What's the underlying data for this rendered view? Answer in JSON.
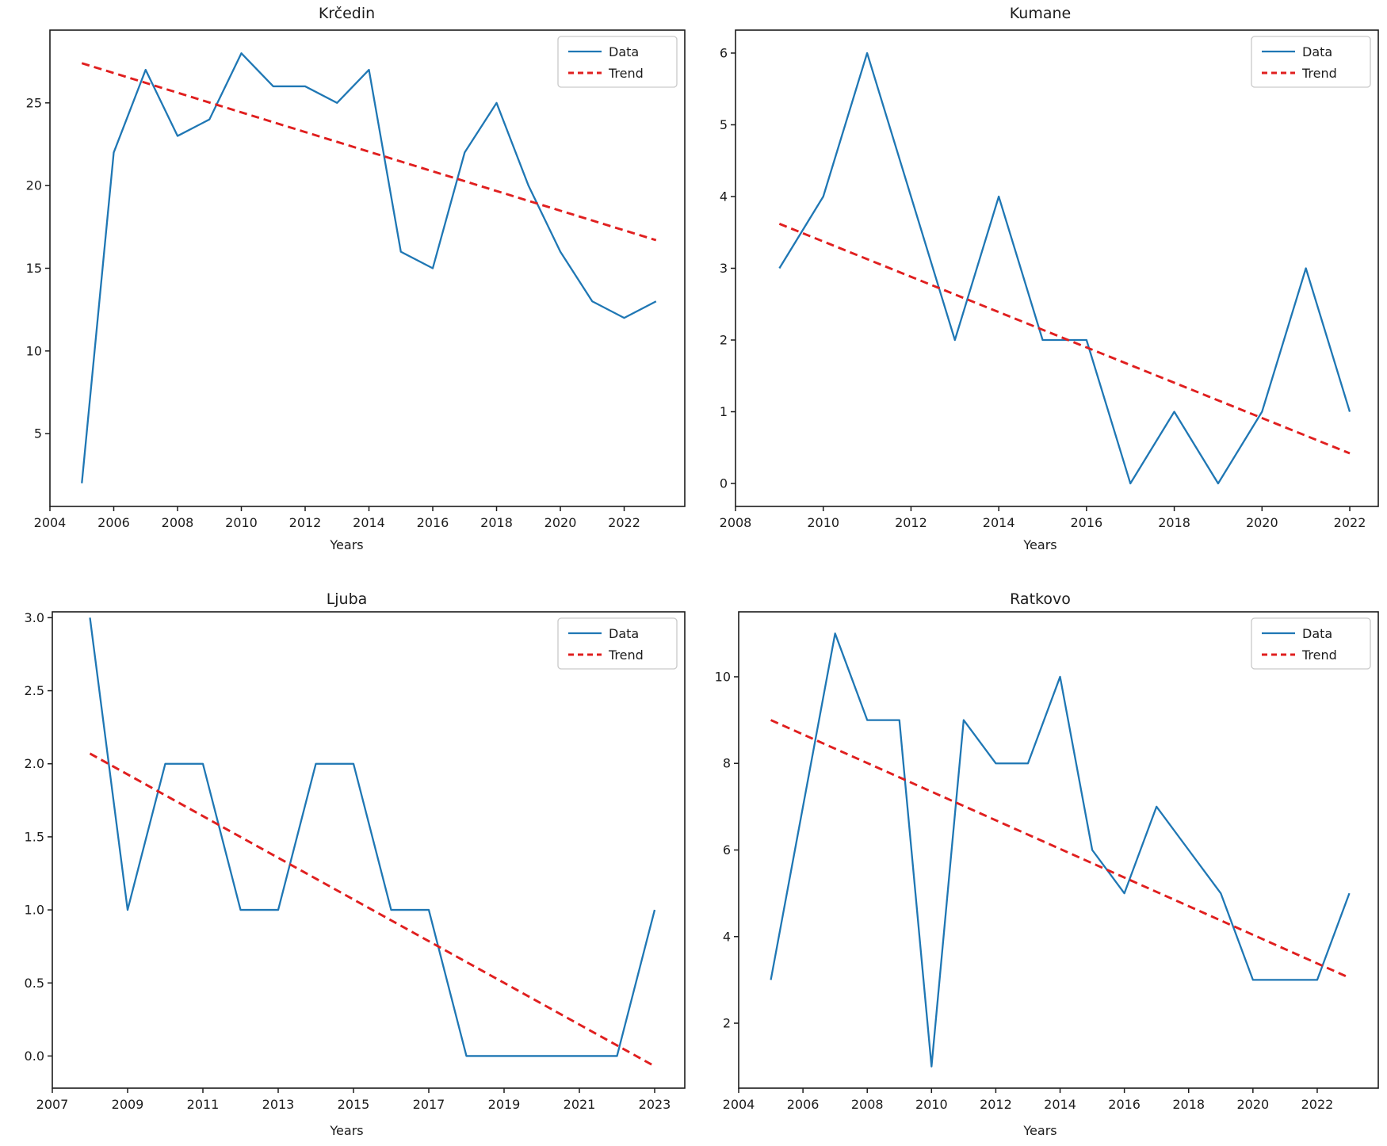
{
  "figure": {
    "background": "#ffffff"
  },
  "colors": {
    "data_line": "#1f77b4",
    "trend_line": "#e01f1f",
    "spine": "#1c1c1c",
    "text": "#1c1c1c",
    "legend_border": "#c9c9c9",
    "legend_background": "#ffffff"
  },
  "legend": {
    "data_label": "Data",
    "trend_label": "Trend",
    "position": "upper right"
  },
  "chart_data": [
    {
      "type": "line",
      "title": "Krčedin",
      "xlabel": "Years",
      "grid": false,
      "legend": [
        "Data",
        "Trend"
      ],
      "x": [
        2005,
        2006,
        2007,
        2008,
        2009,
        2010,
        2011,
        2012,
        2013,
        2014,
        2015,
        2016,
        2017,
        2018,
        2019,
        2020,
        2021,
        2022,
        2023
      ],
      "series": [
        {
          "name": "Data",
          "style": "solid",
          "values": [
            2,
            22,
            27,
            23,
            24,
            28,
            26,
            26,
            25,
            27,
            16,
            15,
            22,
            25,
            20,
            16,
            13,
            12,
            13
          ]
        },
        {
          "name": "Trend",
          "style": "dashed",
          "x": [
            2005,
            2023
          ],
          "values": [
            27.4,
            16.7
          ]
        }
      ],
      "xticks": [
        2004,
        2006,
        2008,
        2010,
        2012,
        2014,
        2016,
        2018,
        2020,
        2022
      ],
      "yticks": [
        5,
        10,
        15,
        20,
        25
      ],
      "ytick_decimals": 0,
      "xlim": [
        2004,
        2023.9
      ],
      "ylim": [
        0.6,
        29.4
      ]
    },
    {
      "type": "line",
      "title": "Kumane",
      "xlabel": "Years",
      "grid": false,
      "legend": [
        "Data",
        "Trend"
      ],
      "x": [
        2009,
        2010,
        2011,
        2012,
        2013,
        2014,
        2015,
        2016,
        2017,
        2018,
        2019,
        2020,
        2021,
        2022
      ],
      "series": [
        {
          "name": "Data",
          "style": "solid",
          "values": [
            3,
            4,
            6,
            4,
            2,
            4,
            2,
            2,
            0,
            1,
            0,
            1,
            3,
            1
          ]
        },
        {
          "name": "Trend",
          "style": "dashed",
          "x": [
            2009,
            2022
          ],
          "values": [
            3.62,
            0.42
          ]
        }
      ],
      "xticks": [
        2008,
        2010,
        2012,
        2014,
        2016,
        2018,
        2020,
        2022
      ],
      "yticks": [
        0,
        1,
        2,
        3,
        4,
        5,
        6
      ],
      "ytick_decimals": 0,
      "xlim": [
        2008,
        2022.65
      ],
      "ylim": [
        -0.32,
        6.32
      ]
    },
    {
      "type": "line",
      "title": "Ljuba",
      "xlabel": "Years",
      "grid": false,
      "legend": [
        "Data",
        "Trend"
      ],
      "x": [
        2008,
        2009,
        2010,
        2011,
        2012,
        2013,
        2014,
        2015,
        2016,
        2017,
        2018,
        2019,
        2020,
        2021,
        2022,
        2023
      ],
      "series": [
        {
          "name": "Data",
          "style": "solid",
          "values": [
            3,
            1,
            2,
            2,
            1,
            1,
            2,
            2,
            1,
            1,
            0,
            0,
            0,
            0,
            0,
            1
          ]
        },
        {
          "name": "Trend",
          "style": "dashed",
          "x": [
            2008,
            2023
          ],
          "values": [
            2.07,
            -0.07
          ]
        }
      ],
      "xticks": [
        2007,
        2009,
        2011,
        2013,
        2015,
        2017,
        2019,
        2021,
        2023
      ],
      "yticks": [
        0.0,
        0.5,
        1.0,
        1.5,
        2.0,
        2.5,
        3.0
      ],
      "ytick_decimals": 1,
      "xlim": [
        2007,
        2023.8
      ],
      "ylim": [
        -0.22,
        3.04
      ]
    },
    {
      "type": "line",
      "title": "Ratkovo",
      "xlabel": "Years",
      "grid": false,
      "legend": [
        "Data",
        "Trend"
      ],
      "x": [
        2005,
        2006,
        2007,
        2008,
        2009,
        2010,
        2011,
        2012,
        2013,
        2014,
        2015,
        2016,
        2017,
        2018,
        2019,
        2020,
        2021,
        2022,
        2023
      ],
      "series": [
        {
          "name": "Data",
          "style": "solid",
          "values": [
            3,
            7,
            11,
            9,
            9,
            1,
            9,
            8,
            8,
            10,
            6,
            5,
            7,
            6,
            5,
            3,
            3,
            3,
            5
          ]
        },
        {
          "name": "Trend",
          "style": "dashed",
          "x": [
            2005,
            2023
          ],
          "values": [
            9.0,
            3.05
          ]
        }
      ],
      "xticks": [
        2004,
        2006,
        2008,
        2010,
        2012,
        2014,
        2016,
        2018,
        2020,
        2022
      ],
      "yticks": [
        2,
        4,
        6,
        8,
        10
      ],
      "ytick_decimals": 0,
      "xlim": [
        2004,
        2023.9
      ],
      "ylim": [
        0.5,
        11.5
      ]
    }
  ]
}
